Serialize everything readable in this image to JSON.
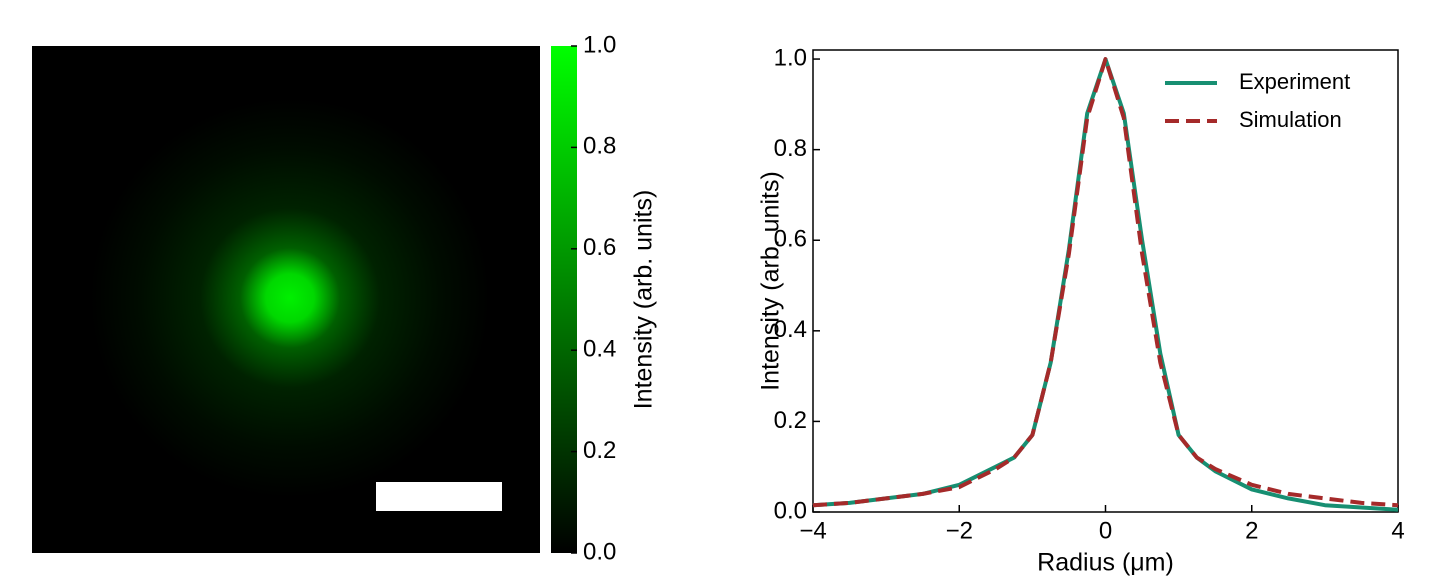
{
  "chart_data": [
    {
      "type": "image",
      "cmap": [
        "#000000",
        "#00ff00"
      ],
      "colorbar_label": "Intensity (arb. units)",
      "clim": [
        0,
        1
      ],
      "cticks": [
        {
          "value": 0,
          "label": "0.0"
        },
        0.2,
        0.4,
        0.6,
        0.8,
        {
          "value": 1,
          "label": "1.0"
        }
      ]
    },
    {
      "type": "line",
      "xlabel": "Radius (μm)",
      "ylabel": "Intensity (arb. units)",
      "x": [
        -4,
        -3.5,
        -3,
        -2.5,
        -2,
        -1.5,
        -1.25,
        -1,
        -0.75,
        -0.5,
        -0.25,
        0,
        0.25,
        0.5,
        0.75,
        1,
        1.25,
        1.5,
        2,
        2.5,
        3,
        3.5,
        4
      ],
      "series": [
        {
          "name": "Experiment",
          "color": "#178f72",
          "dash": false,
          "values": [
            0.015,
            0.02,
            0.03,
            0.04,
            0.06,
            0.1,
            0.12,
            0.17,
            0.33,
            0.58,
            0.88,
            1.0,
            0.88,
            0.6,
            0.35,
            0.17,
            0.12,
            0.09,
            0.05,
            0.03,
            0.015,
            0.01,
            0.005
          ]
        },
        {
          "name": "Simulation",
          "color": "#a52a2a",
          "dash": true,
          "values": [
            0.015,
            0.02,
            0.03,
            0.04,
            0.055,
            0.095,
            0.12,
            0.17,
            0.33,
            0.57,
            0.87,
            1.0,
            0.87,
            0.57,
            0.33,
            0.17,
            0.12,
            0.095,
            0.06,
            0.04,
            0.03,
            0.02,
            0.015
          ]
        }
      ],
      "xlim": [
        -4,
        4
      ],
      "ylim": [
        0,
        1.02
      ],
      "xticks": [
        {
          "value": -4,
          "label": "−4"
        },
        {
          "value": -2,
          "label": "−2"
        },
        0,
        2,
        4
      ],
      "yticks": [
        {
          "value": 0,
          "label": "0.0"
        },
        0.2,
        0.4,
        0.6,
        0.8,
        {
          "value": 1,
          "label": "1.0"
        }
      ],
      "legend": "upper right"
    }
  ]
}
